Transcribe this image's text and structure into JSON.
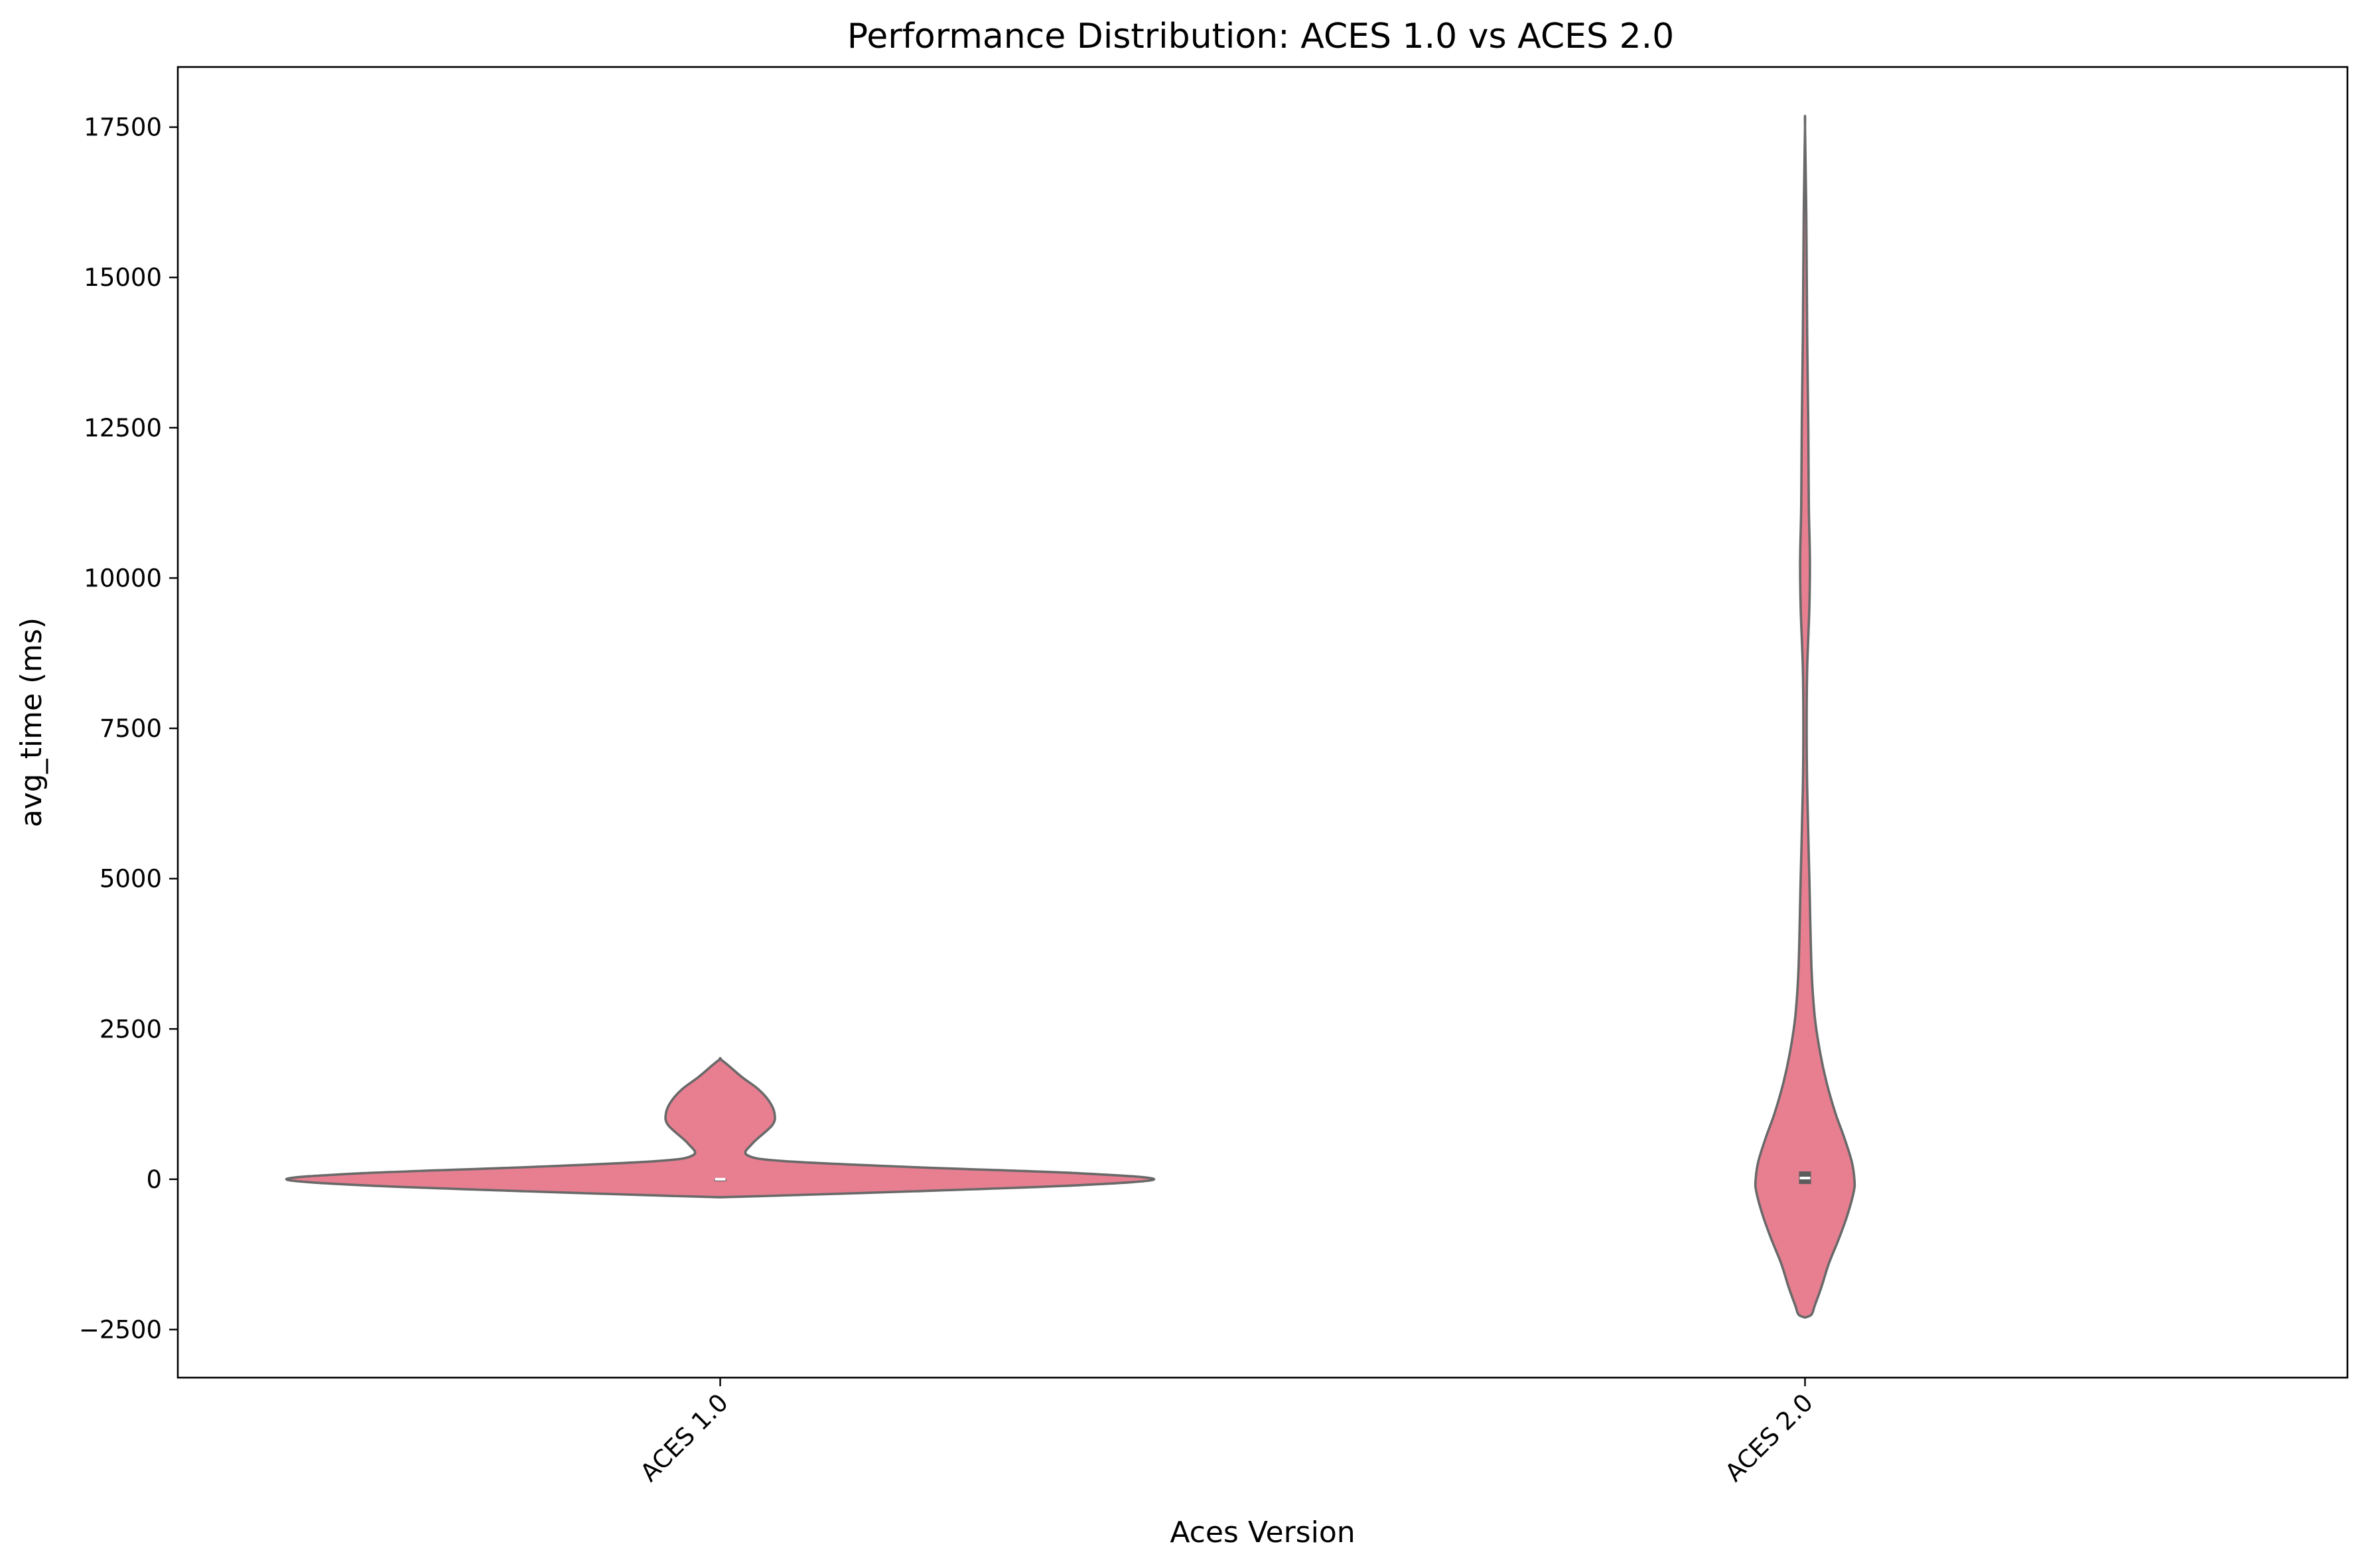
{
  "chart_data": {
    "type": "violin",
    "title": "Performance Distribution: ACES 1.0 vs ACES 2.0",
    "xlabel": "Aces Version",
    "ylabel": "avg_time (ms)",
    "categories": [
      "ACES 1.0",
      "ACES 2.0"
    ],
    "ylim": [
      -3300,
      18500
    ],
    "yticks": [
      -2500,
      0,
      2500,
      5000,
      7500,
      10000,
      12500,
      15000,
      17500
    ],
    "ytick_labels": [
      "−2500",
      "0",
      "2500",
      "5000",
      "7500",
      "10000",
      "12500",
      "15000",
      "17500"
    ],
    "grid": false,
    "legend": "none",
    "colors": {
      "fill": "#e77f91",
      "outline": "#696969",
      "box": "#5c5c5c",
      "median": "#ffffff"
    },
    "violins": [
      {
        "category": "ACES 1.0",
        "density_profile": [
          {
            "y": -300,
            "half_width": 0
          },
          {
            "y": -280,
            "half_width": 0.04
          },
          {
            "y": -200,
            "half_width": 0.18
          },
          {
            "y": -100,
            "half_width": 0.33
          },
          {
            "y": 0,
            "half_width": 0.4
          },
          {
            "y": 100,
            "half_width": 0.33
          },
          {
            "y": 200,
            "half_width": 0.18
          },
          {
            "y": 300,
            "half_width": 0.06
          },
          {
            "y": 400,
            "half_width": 0.025
          },
          {
            "y": 600,
            "half_width": 0.03
          },
          {
            "y": 900,
            "half_width": 0.048
          },
          {
            "y": 1100,
            "half_width": 0.05
          },
          {
            "y": 1300,
            "half_width": 0.045
          },
          {
            "y": 1500,
            "half_width": 0.035
          },
          {
            "y": 1700,
            "half_width": 0.02
          },
          {
            "y": 1900,
            "half_width": 0.007
          },
          {
            "y": 2000,
            "half_width": 0
          }
        ],
        "box": {
          "q1": -10,
          "median": 0,
          "q3": 10
        }
      },
      {
        "category": "ACES 2.0",
        "density_profile": [
          {
            "y": -2300,
            "half_width": 0
          },
          {
            "y": -2250,
            "half_width": 0.006
          },
          {
            "y": -2100,
            "half_width": 0.009
          },
          {
            "y": -1800,
            "half_width": 0.015
          },
          {
            "y": -1400,
            "half_width": 0.022
          },
          {
            "y": -1000,
            "half_width": 0.031
          },
          {
            "y": -600,
            "half_width": 0.039
          },
          {
            "y": -200,
            "half_width": 0.045
          },
          {
            "y": 0,
            "half_width": 0.0455
          },
          {
            "y": 300,
            "half_width": 0.043
          },
          {
            "y": 700,
            "half_width": 0.036
          },
          {
            "y": 1100,
            "half_width": 0.028
          },
          {
            "y": 1600,
            "half_width": 0.02
          },
          {
            "y": 2100,
            "half_width": 0.014
          },
          {
            "y": 2700,
            "half_width": 0.009
          },
          {
            "y": 3500,
            "half_width": 0.006
          },
          {
            "y": 5000,
            "half_width": 0.004
          },
          {
            "y": 6500,
            "half_width": 0.002
          },
          {
            "y": 7500,
            "half_width": 0.0015
          },
          {
            "y": 8500,
            "half_width": 0.002
          },
          {
            "y": 9500,
            "half_width": 0.004
          },
          {
            "y": 10300,
            "half_width": 0.0045
          },
          {
            "y": 11200,
            "half_width": 0.0035
          },
          {
            "y": 12500,
            "half_width": 0.003
          },
          {
            "y": 14000,
            "half_width": 0.002
          },
          {
            "y": 16000,
            "half_width": 0.0012
          },
          {
            "y": 17500,
            "half_width": 0
          }
        ],
        "box": {
          "q1": -80,
          "median": 20,
          "q3": 130
        }
      }
    ]
  }
}
